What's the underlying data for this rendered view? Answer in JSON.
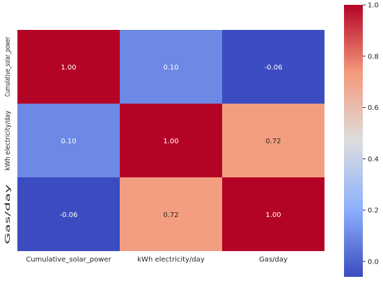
{
  "chart_data": {
    "type": "heatmap",
    "title": "",
    "xlabel": "",
    "ylabel": "",
    "x_categories": [
      "Cumulative_solar_power",
      "kWh electricity/day",
      "Gas/day"
    ],
    "y_categories": [
      "Cumulative_solar_power",
      "kWh electricity/day",
      "Gas/day"
    ],
    "values": [
      [
        1.0,
        0.1,
        -0.06
      ],
      [
        0.1,
        1.0,
        0.72
      ],
      [
        -0.06,
        0.72,
        1.0
      ]
    ],
    "cell_labels": [
      [
        "1.00",
        "0.10",
        "-0.06"
      ],
      [
        "0.10",
        "1.00",
        "0.72"
      ],
      [
        "-0.06",
        "0.72",
        "1.00"
      ]
    ],
    "colorbar": {
      "colormap": "coolwarm",
      "vmin": -0.06,
      "vmax": 1.0,
      "ticks": [
        0.0,
        0.2,
        0.4,
        0.6,
        0.8,
        1.0
      ],
      "tick_labels": [
        "0.0",
        "0.2",
        "0.4",
        "0.6",
        "0.8",
        "1.0"
      ]
    },
    "grid": false,
    "legend": "colorbar-right"
  }
}
